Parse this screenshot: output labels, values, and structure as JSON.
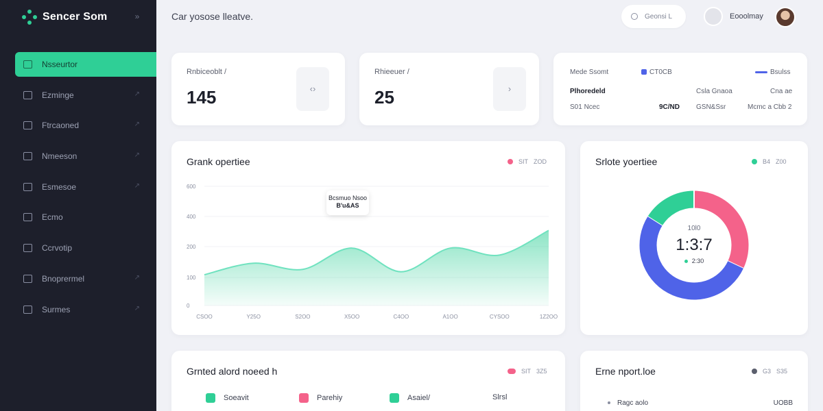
{
  "app": {
    "name": "Sencer Som"
  },
  "sidebar": {
    "items": [
      {
        "label": "Nsseurtor",
        "active": true,
        "arrow": false
      },
      {
        "label": "Ezminge",
        "active": false,
        "arrow": true
      },
      {
        "label": "Ftrcaoned",
        "active": false,
        "arrow": true
      },
      {
        "label": "Nmeeson",
        "active": false,
        "arrow": true
      },
      {
        "label": "Esmesoe",
        "active": false,
        "arrow": true
      },
      {
        "label": "Ecmo",
        "active": false,
        "arrow": false
      },
      {
        "label": "Ccrvotip",
        "active": false,
        "arrow": false
      },
      {
        "label": "Bnoprermel",
        "active": false,
        "arrow": true
      },
      {
        "label": "Surmes",
        "active": false,
        "arrow": true
      }
    ]
  },
  "header": {
    "title": "Car yosose lleatve.",
    "search_text": "Geonsi L",
    "profile_name": "Eooolmay"
  },
  "stats": [
    {
      "label": "Rnbiceoblt /",
      "value": "145",
      "icon": "code-icon",
      "glyph": "‹›"
    },
    {
      "label": "Rhieeuer /",
      "value": "25",
      "icon": "chevron-right-icon",
      "glyph": "›"
    }
  ],
  "summary": {
    "title": "Mede Ssomt",
    "legend_left": "CT0CB",
    "legend_right": "Bsulss",
    "row1": {
      "label": "Plhoredeld",
      "mid": "Csla Gnaoa",
      "right": "Cna ae"
    },
    "row2": {
      "label": "S01 Ncec",
      "bold": "9C/ND",
      "mid": "GSN&Ssr",
      "right": "Mcmc a Cbb 2"
    }
  },
  "line_card": {
    "title": "Grank opertiee",
    "legend": {
      "a": "SIT",
      "b": "ZOD"
    },
    "tooltip": {
      "line1": "Bcsmuo Nsoo",
      "line2": "B'u&AS"
    }
  },
  "chart_data": {
    "type": "area",
    "x": [
      "CSOO",
      "Y25O",
      "S2OO",
      "X5OO",
      "C4OO",
      "A1OO",
      "CYSOO",
      "1Z2OO"
    ],
    "y_ticks": [
      "600",
      "400",
      "200",
      "100",
      "0"
    ],
    "ylim": [
      0,
      600
    ],
    "series": [
      {
        "values": [
          155,
          213,
          182,
          289,
          170,
          289,
          254,
          378
        ]
      }
    ],
    "colors": {
      "fill": "#2fcf96",
      "line": "#6fe2bf"
    }
  },
  "donut_card": {
    "title": "Srlote yoertiee",
    "legend": {
      "a": "B4",
      "b": "Z00"
    },
    "center_top": "10l0",
    "center_value": "1:3:7",
    "center_sub": "2:30",
    "segments": [
      {
        "value": 32,
        "color": "#f4628a"
      },
      {
        "value": 52,
        "color": "#4f63e8"
      },
      {
        "value": 16,
        "color": "#2fcf96"
      }
    ]
  },
  "bottom_left": {
    "title": "Grnted alord noeed h",
    "legend": {
      "a": "SIT",
      "b": "3Z5"
    },
    "pills": [
      {
        "label": "Soeavit",
        "color": "#2fcf96"
      },
      {
        "label": "Parehiy",
        "color": "#f4628a"
      },
      {
        "label": "Asaiel/",
        "color": "#2fcf96"
      }
    ],
    "extra": "Slrsl"
  },
  "bottom_right": {
    "title": "Erne nport.loe",
    "legend": {
      "a": "G3",
      "b": "S35"
    },
    "row": {
      "label": "Ragc aolo",
      "value": "UOBB"
    }
  }
}
